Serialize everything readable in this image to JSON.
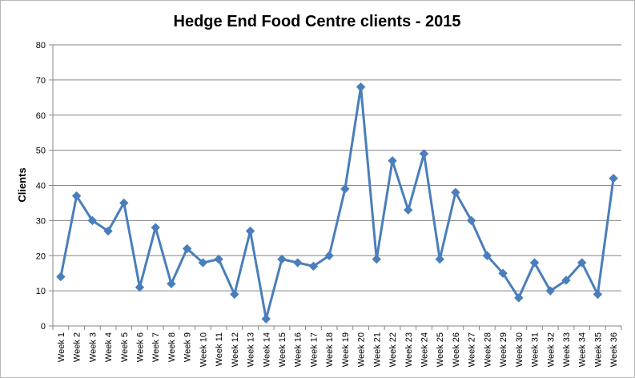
{
  "chart_data": {
    "type": "line",
    "title": "Hedge End Food Centre clients - 2015",
    "xlabel": "",
    "ylabel": "Clients",
    "ylim": [
      0,
      80
    ],
    "yticks": [
      0,
      10,
      20,
      30,
      40,
      50,
      60,
      70,
      80
    ],
    "grid": true,
    "legend": "none",
    "categories": [
      "Week 1",
      "Week 2",
      "Week 3",
      "Week 4",
      "Week 5",
      "Week 6",
      "Week 7",
      "Week 8",
      "Week 9",
      "Week 10",
      "Week 11",
      "Week 12",
      "Week 13",
      "Week 14",
      "Week 15",
      "Week 16",
      "Week 17",
      "Week 18",
      "Week 19",
      "Week 20",
      "Week 21",
      "Week 22",
      "Week 23",
      "Week 24",
      "Week 25",
      "Week 26",
      "Week 27",
      "Week 28",
      "Week 29",
      "Week 30",
      "Week 31",
      "Week 32",
      "Week 33",
      "Week 34",
      "Week 35",
      "Week 36"
    ],
    "series": [
      {
        "color": "#4a7ebb",
        "values": [
          14,
          37,
          30,
          27,
          35,
          11,
          28,
          12,
          22,
          18,
          19,
          9,
          27,
          2,
          19,
          18,
          17,
          20,
          39,
          68,
          19,
          47,
          33,
          49,
          19,
          38,
          30,
          20,
          15,
          8,
          18,
          10,
          13,
          18,
          9,
          42
        ]
      }
    ]
  }
}
